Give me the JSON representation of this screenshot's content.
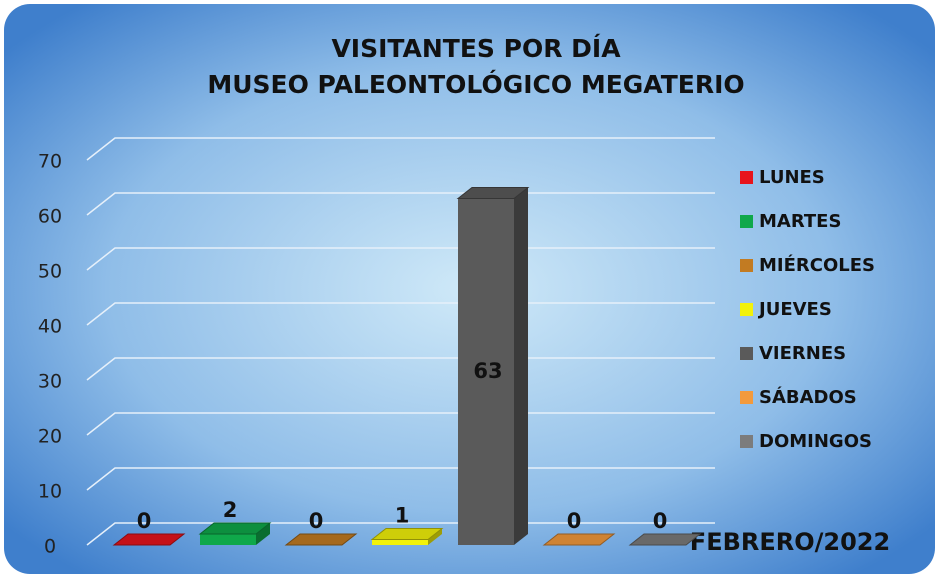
{
  "chart_data": {
    "type": "bar3d",
    "title": "VISITANTES POR DÍA",
    "subtitle": "MUSEO PALEONTOLÓGICO MEGATERIO",
    "categories": [
      "FEBRERO/2022"
    ],
    "series": [
      {
        "name": "LUNES",
        "color": "#e8141c",
        "values": [
          0
        ]
      },
      {
        "name": "MARTES",
        "color": "#0fa84a",
        "values": [
          2
        ]
      },
      {
        "name": "MIÉRCOLES",
        "color": "#c27b22",
        "values": [
          0
        ]
      },
      {
        "name": "JUEVES",
        "color": "#f2f20a",
        "values": [
          1
        ]
      },
      {
        "name": "VIERNES",
        "color": "#5a5a5a",
        "values": [
          63
        ]
      },
      {
        "name": "SÁBADOS",
        "color": "#f39a3c",
        "values": [
          0
        ]
      },
      {
        "name": "DOMINGOS",
        "color": "#7c7c7c",
        "values": [
          0
        ]
      }
    ],
    "ylim": [
      0,
      70
    ],
    "yticks": [
      0,
      10,
      20,
      30,
      40,
      50,
      60,
      70
    ],
    "grid": true,
    "legend": "right"
  }
}
